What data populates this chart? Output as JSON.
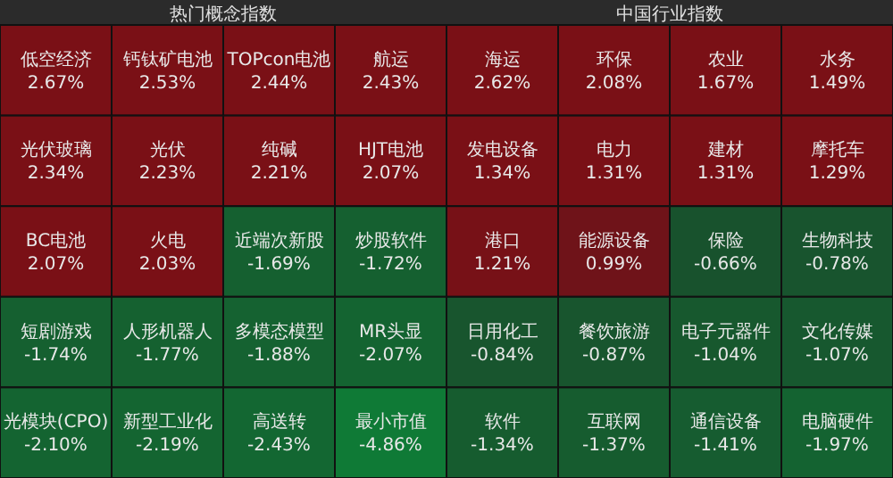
{
  "chart_data": [
    {
      "type": "other",
      "title": "热门概念指数",
      "categories": [
        "低空经济",
        "钙钛矿电池",
        "TOPcon电池",
        "航运",
        "光伏玻璃",
        "光伏",
        "纯碱",
        "HJT电池",
        "BC电池",
        "火电",
        "近端次新股",
        "炒股软件",
        "短剧游戏",
        "人形机器人",
        "多模态模型",
        "MR头显",
        "光模块(CPO)",
        "新型工业化",
        "高送转",
        "最小市值"
      ],
      "values": [
        2.67,
        2.53,
        2.44,
        2.43,
        2.34,
        2.23,
        2.21,
        2.07,
        2.07,
        2.03,
        -1.69,
        -1.72,
        -1.74,
        -1.77,
        -1.88,
        -2.07,
        -2.1,
        -2.19,
        -2.43,
        -4.86
      ],
      "value_labels": [
        "2.67%",
        "2.53%",
        "2.44%",
        "2.43%",
        "2.34%",
        "2.23%",
        "2.21%",
        "2.07%",
        "2.07%",
        "2.03%",
        "-1.69%",
        "-1.72%",
        "-1.74%",
        "-1.77%",
        "-1.88%",
        "-2.07%",
        "-2.10%",
        "-2.19%",
        "-2.43%",
        "-4.86%"
      ]
    },
    {
      "type": "other",
      "title": "中国行业指数",
      "categories": [
        "海运",
        "环保",
        "农业",
        "水务",
        "发电设备",
        "电力",
        "建材",
        "摩托车",
        "港口",
        "能源设备",
        "保险",
        "生物科技",
        "日用化工",
        "餐饮旅游",
        "电子元器件",
        "文化传媒",
        "软件",
        "互联网",
        "通信设备",
        "电脑硬件"
      ],
      "values": [
        2.62,
        2.08,
        1.67,
        1.49,
        1.34,
        1.31,
        1.31,
        1.29,
        1.21,
        0.99,
        -0.66,
        -0.78,
        -0.84,
        -0.87,
        -1.04,
        -1.07,
        -1.34,
        -1.37,
        -1.41,
        -1.97
      ],
      "value_labels": [
        "2.62%",
        "2.08%",
        "1.67%",
        "1.49%",
        "1.34%",
        "1.31%",
        "1.31%",
        "1.29%",
        "1.21%",
        "0.99%",
        "-0.66%",
        "-0.78%",
        "-0.84%",
        "-0.87%",
        "-1.04%",
        "-1.07%",
        "-1.34%",
        "-1.37%",
        "-1.41%",
        "-1.97%"
      ]
    }
  ]
}
